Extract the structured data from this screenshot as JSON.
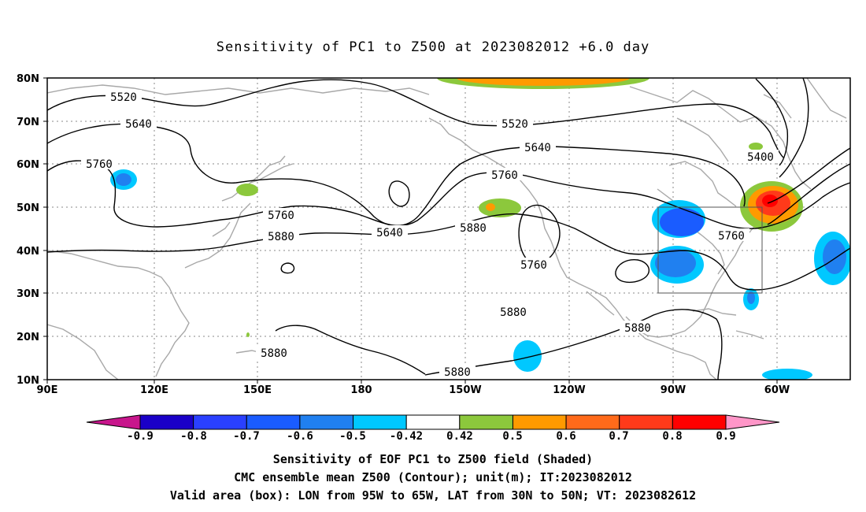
{
  "title": "Sensitivity of PC1 to Z500 at 2023082012 +6.0 day",
  "lat_labels": [
    "80N",
    "70N",
    "60N",
    "50N",
    "40N",
    "30N",
    "20N",
    "10N"
  ],
  "lon_labels": [
    "90E",
    "120E",
    "150E",
    "180",
    "150W",
    "120W",
    "90W",
    "60W"
  ],
  "contour_labels": [
    {
      "text": "5520"
    },
    {
      "text": "5640"
    },
    {
      "text": "5760"
    },
    {
      "text": "5520"
    },
    {
      "text": "5640"
    },
    {
      "text": "5760"
    },
    {
      "text": "5760"
    },
    {
      "text": "5880"
    },
    {
      "text": "5640"
    },
    {
      "text": "5880"
    },
    {
      "text": "5760"
    },
    {
      "text": "5400"
    },
    {
      "text": "5760"
    },
    {
      "text": "5880"
    },
    {
      "text": "5880"
    },
    {
      "text": "5880"
    },
    {
      "text": "5880"
    }
  ],
  "valid_box": {
    "lon_from": "95W",
    "lon_to": "65W",
    "lat_from": "30N",
    "lat_to": "50N"
  },
  "colorbar": {
    "labels": [
      "-0.9",
      "-0.8",
      "-0.7",
      "-0.6",
      "-0.5",
      "-0.42",
      "0.42",
      "0.5",
      "0.6",
      "0.7",
      "0.8",
      "0.9"
    ],
    "colors": [
      "#1a00c8",
      "#2a40ff",
      "#1a5cff",
      "#2080f0",
      "#00c8ff",
      "#ffffff",
      "#8cc83c",
      "#ff9a00",
      "#ff6a1a",
      "#ff3a1a",
      "#ff0000"
    ],
    "low_end_color": "#c8168c",
    "high_end_color": "#ff96c8"
  },
  "captions": {
    "line1": "Sensitivity of EOF PC1 to Z500 field (Shaded)",
    "line2": "CMC ensemble mean Z500 (Contour); unit(m); IT:2023082012",
    "line3": "Valid area (box): LON from 95W to 65W, LAT from 30N to 50N; VT: 2023082612"
  }
}
